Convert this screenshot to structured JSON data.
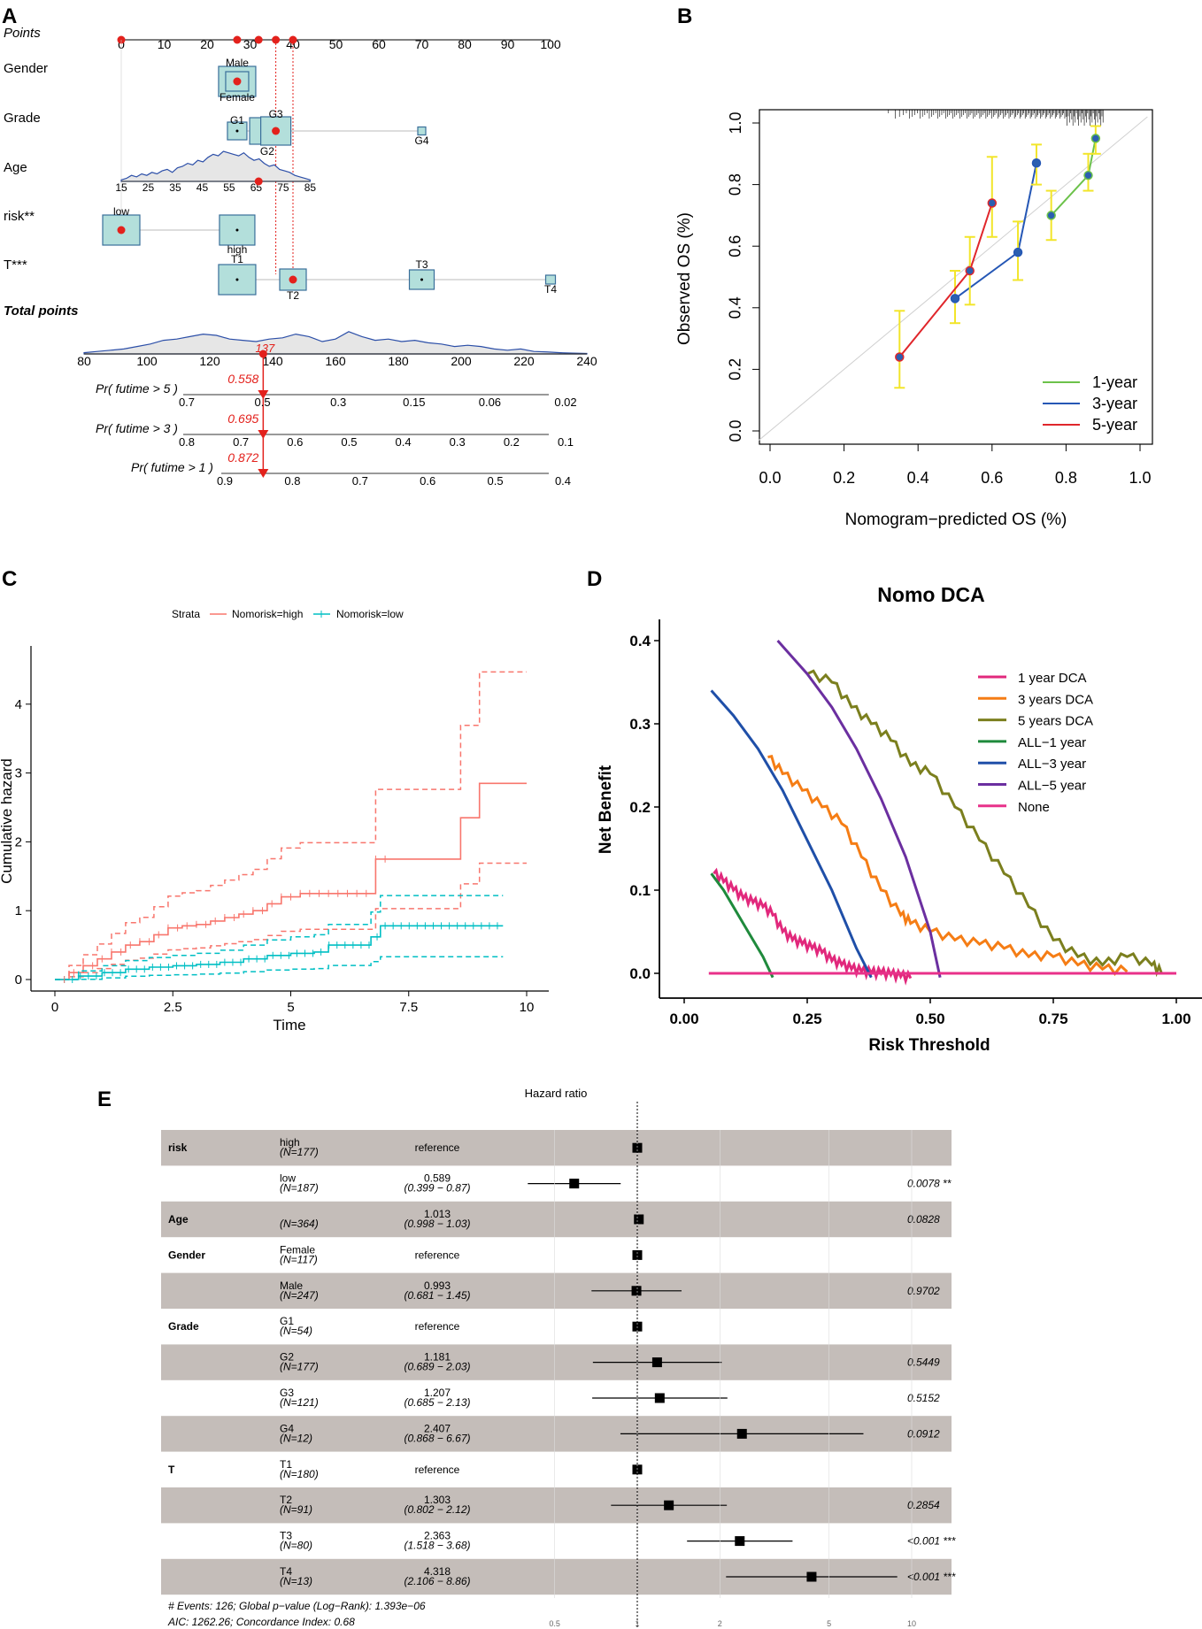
{
  "chart_data": [
    {
      "panel": "A",
      "type": "nomogram",
      "points_label": "Points",
      "points_ticks": [
        0,
        10,
        20,
        30,
        40,
        50,
        60,
        70,
        80,
        90,
        100
      ],
      "points_markers": [
        0,
        27,
        32,
        36,
        40
      ],
      "variables": [
        {
          "name": "Gender",
          "levels": [
            {
              "label": "Male",
              "points": 27
            },
            {
              "label": "Female",
              "points": 27
            }
          ],
          "selected_points": 27
        },
        {
          "name": "Grade",
          "levels": [
            {
              "label": "G1",
              "points": 27
            },
            {
              "label": "G3",
              "points": 36
            },
            {
              "label": "G2",
              "points": 33
            },
            {
              "label": "G4",
              "points": 70
            }
          ],
          "selected_points": 36
        },
        {
          "name": "Age",
          "ticks": [
            "15",
            "25",
            "35",
            "45",
            "55",
            "65",
            "75",
            "85"
          ],
          "selected_points": 32
        },
        {
          "name": "risk**",
          "levels": [
            {
              "label": "low",
              "points": 0
            },
            {
              "label": "high",
              "points": 27
            }
          ],
          "selected_points": 0
        },
        {
          "name": "T***",
          "levels": [
            {
              "label": "T1",
              "points": 27
            },
            {
              "label": "T2",
              "points": 40
            },
            {
              "label": "T3",
              "points": 70
            },
            {
              "label": "T4",
              "points": 100
            }
          ],
          "selected_points": 40
        }
      ],
      "total_points_label": "Total points",
      "total_ticks": [
        80,
        100,
        120,
        140,
        160,
        180,
        200,
        220,
        240
      ],
      "total_value": "137",
      "probability_axes": [
        {
          "label": "Pr( futime > 5 )",
          "ticks": [
            "0.7",
            "0.5",
            "0.3",
            "0.15",
            "0.06",
            "0.02"
          ],
          "value": "0.558"
        },
        {
          "label": "Pr( futime > 3 )",
          "ticks": [
            "0.8",
            "0.7",
            "0.6",
            "0.5",
            "0.4",
            "0.3",
            "0.2",
            "0.1"
          ],
          "value": "0.695"
        },
        {
          "label": "Pr( futime > 1 )",
          "ticks": [
            "0.9",
            "0.8",
            "0.7",
            "0.6",
            "0.5",
            "0.4"
          ],
          "value": "0.872"
        }
      ]
    },
    {
      "panel": "B",
      "type": "line",
      "xlabel": "Nomogram−predicted OS (%)",
      "ylabel": "Observed OS (%)",
      "xlim": [
        0,
        1
      ],
      "ylim": [
        0,
        1
      ],
      "x_ticks": [
        "0.0",
        "0.2",
        "0.4",
        "0.6",
        "0.8",
        "1.0"
      ],
      "y_ticks": [
        "0.0",
        "0.2",
        "0.4",
        "0.6",
        "0.8",
        "1.0"
      ],
      "series": [
        {
          "name": "1-year",
          "color": "#6cc24a",
          "x": [
            0.76,
            0.86,
            0.88
          ],
          "y": [
            0.7,
            0.83,
            0.95
          ]
        },
        {
          "name": "3-year",
          "color": "#2557b5",
          "x": [
            0.5,
            0.67,
            0.72
          ],
          "y": [
            0.43,
            0.58,
            0.87
          ]
        },
        {
          "name": "5-year",
          "color": "#e0262b",
          "x": [
            0.35,
            0.54,
            0.6
          ],
          "y": [
            0.24,
            0.52,
            0.74
          ]
        }
      ]
    },
    {
      "panel": "C",
      "type": "line",
      "xlabel": "Time",
      "ylabel": "Cumulative hazard",
      "xlim": [
        0,
        10
      ],
      "ylim": [
        0,
        4.5
      ],
      "x_ticks": [
        "0",
        "2.5",
        "5",
        "7.5",
        "10"
      ],
      "y_ticks": [
        "0",
        "1",
        "2",
        "3",
        "4"
      ],
      "legend_title": "Strata",
      "series": [
        {
          "name": "Nomorisk=high",
          "color": "#f8766d",
          "x": [
            0,
            0.3,
            0.6,
            0.9,
            1.2,
            1.5,
            1.8,
            2.1,
            2.4,
            2.7,
            3.0,
            3.3,
            3.6,
            3.9,
            4.2,
            4.5,
            4.8,
            5.2,
            5.6,
            6.0,
            6.5,
            6.8,
            7.5,
            8.6,
            9.0,
            10.0
          ],
          "y": [
            0,
            0.1,
            0.2,
            0.3,
            0.4,
            0.5,
            0.55,
            0.65,
            0.75,
            0.78,
            0.8,
            0.85,
            0.9,
            0.95,
            1.0,
            1.1,
            1.2,
            1.25,
            1.25,
            1.25,
            1.25,
            1.75,
            1.75,
            2.35,
            2.85,
            2.85
          ]
        },
        {
          "name": "Nomorisk=low",
          "color": "#00bfc4",
          "x": [
            0,
            0.5,
            1.0,
            1.5,
            2.0,
            2.5,
            3.0,
            3.5,
            4.0,
            4.5,
            5.0,
            5.5,
            5.8,
            6.4,
            6.7,
            6.9,
            7.5,
            8.5,
            9.5
          ],
          "y": [
            0,
            0.05,
            0.1,
            0.15,
            0.18,
            0.2,
            0.22,
            0.25,
            0.3,
            0.35,
            0.38,
            0.4,
            0.5,
            0.5,
            0.62,
            0.78,
            0.78,
            0.78,
            0.78
          ]
        }
      ]
    },
    {
      "panel": "D",
      "type": "line",
      "title": "Nomo DCA",
      "xlabel": "Risk Threshold",
      "ylabel": "Net Benefit",
      "xlim": [
        0,
        1
      ],
      "ylim": [
        -0.02,
        0.41
      ],
      "x_ticks": [
        "0.00",
        "0.25",
        "0.50",
        "0.75",
        "1.00"
      ],
      "y_ticks": [
        "0.0",
        "0.1",
        "0.2",
        "0.3",
        "0.4"
      ],
      "series": [
        {
          "name": "1 year DCA",
          "color": "#e1287c",
          "x": [
            0.06,
            0.08,
            0.1,
            0.12,
            0.14,
            0.16,
            0.18,
            0.2,
            0.22,
            0.24,
            0.26,
            0.28,
            0.3,
            0.32,
            0.34,
            0.36,
            0.38,
            0.4,
            0.42,
            0.44,
            0.46
          ],
          "y": [
            0.12,
            0.11,
            0.1,
            0.09,
            0.085,
            0.08,
            0.07,
            0.05,
            0.04,
            0.035,
            0.03,
            0.025,
            0.015,
            0.01,
            0.005,
            0.002,
            0.0,
            0.0,
            -0.002,
            -0.004,
            -0.006
          ]
        },
        {
          "name": "3 years DCA",
          "color": "#f57d15",
          "x": [
            0.17,
            0.2,
            0.24,
            0.28,
            0.32,
            0.36,
            0.4,
            0.44,
            0.46,
            0.5,
            0.55,
            0.6,
            0.65,
            0.7,
            0.75,
            0.8,
            0.85,
            0.9
          ],
          "y": [
            0.26,
            0.24,
            0.22,
            0.2,
            0.18,
            0.14,
            0.1,
            0.07,
            0.06,
            0.05,
            0.04,
            0.035,
            0.03,
            0.02,
            0.02,
            0.01,
            0.005,
            0.002
          ]
        },
        {
          "name": "5 years DCA",
          "color": "#7b7f1e",
          "x": [
            0.25,
            0.3,
            0.34,
            0.38,
            0.42,
            0.46,
            0.5,
            0.55,
            0.6,
            0.65,
            0.7,
            0.75,
            0.8,
            0.85,
            0.9,
            0.95,
            0.97
          ],
          "y": [
            0.36,
            0.35,
            0.32,
            0.3,
            0.28,
            0.25,
            0.24,
            0.2,
            0.16,
            0.12,
            0.08,
            0.04,
            0.02,
            0.01,
            0.02,
            0.01,
            0.0
          ]
        },
        {
          "name": "ALL−1 year",
          "color": "#1f8a3c",
          "x": [
            0.055,
            0.08,
            0.1,
            0.12,
            0.14,
            0.16,
            0.18
          ],
          "y": [
            0.12,
            0.1,
            0.08,
            0.06,
            0.04,
            0.02,
            -0.005
          ]
        },
        {
          "name": "ALL−3 year",
          "color": "#1f4fa8",
          "x": [
            0.055,
            0.1,
            0.15,
            0.2,
            0.25,
            0.3,
            0.35,
            0.38
          ],
          "y": [
            0.34,
            0.31,
            0.27,
            0.22,
            0.16,
            0.1,
            0.03,
            -0.005
          ]
        },
        {
          "name": "ALL−5 year",
          "color": "#6b2fa0",
          "x": [
            0.19,
            0.25,
            0.3,
            0.35,
            0.4,
            0.45,
            0.5,
            0.52
          ],
          "y": [
            0.4,
            0.36,
            0.32,
            0.27,
            0.21,
            0.14,
            0.05,
            -0.005
          ]
        },
        {
          "name": "None",
          "color": "#e8318a",
          "x": [
            0.05,
            1.0
          ],
          "y": [
            0,
            0
          ]
        }
      ]
    },
    {
      "panel": "E",
      "type": "table",
      "title": "Hazard ratio",
      "x_ticks": [
        0.5,
        1,
        2,
        5,
        10
      ],
      "rows": [
        {
          "var": "risk",
          "level": "high",
          "n": "(N=177)",
          "hr": "reference",
          "ci": "",
          "p": "",
          "est": 1.0,
          "lo": 1.0,
          "hi": 1.0
        },
        {
          "var": "",
          "level": "low",
          "n": "(N=187)",
          "hr": "0.589",
          "ci": "(0.399 − 0.87)",
          "p": "0.0078 **",
          "est": 0.589,
          "lo": 0.399,
          "hi": 0.87
        },
        {
          "var": "Age",
          "level": "",
          "n": "(N=364)",
          "hr": "1.013",
          "ci": "(0.998 − 1.03)",
          "p": "0.0828",
          "est": 1.013,
          "lo": 0.998,
          "hi": 1.03
        },
        {
          "var": "Gender",
          "level": "Female",
          "n": "(N=117)",
          "hr": "reference",
          "ci": "",
          "p": "",
          "est": 1.0,
          "lo": 1.0,
          "hi": 1.0
        },
        {
          "var": "",
          "level": "Male",
          "n": "(N=247)",
          "hr": "0.993",
          "ci": "(0.681 − 1.45)",
          "p": "0.9702",
          "est": 0.993,
          "lo": 0.681,
          "hi": 1.45
        },
        {
          "var": "Grade",
          "level": "G1",
          "n": "(N=54)",
          "hr": "reference",
          "ci": "",
          "p": "",
          "est": 1.0,
          "lo": 1.0,
          "hi": 1.0
        },
        {
          "var": "",
          "level": "G2",
          "n": "(N=177)",
          "hr": "1.181",
          "ci": "(0.689 − 2.03)",
          "p": "0.5449",
          "est": 1.181,
          "lo": 0.689,
          "hi": 2.03
        },
        {
          "var": "",
          "level": "G3",
          "n": "(N=121)",
          "hr": "1.207",
          "ci": "(0.685 − 2.13)",
          "p": "0.5152",
          "est": 1.207,
          "lo": 0.685,
          "hi": 2.13
        },
        {
          "var": "",
          "level": "G4",
          "n": "(N=12)",
          "hr": "2.407",
          "ci": "(0.868 − 6.67)",
          "p": "0.0912",
          "est": 2.407,
          "lo": 0.868,
          "hi": 6.67
        },
        {
          "var": "T",
          "level": "T1",
          "n": "(N=180)",
          "hr": "reference",
          "ci": "",
          "p": "",
          "est": 1.0,
          "lo": 1.0,
          "hi": 1.0
        },
        {
          "var": "",
          "level": "T2",
          "n": "(N=91)",
          "hr": "1.303",
          "ci": "(0.802 − 2.12)",
          "p": "0.2854",
          "est": 1.303,
          "lo": 0.802,
          "hi": 2.12
        },
        {
          "var": "",
          "level": "T3",
          "n": "(N=80)",
          "hr": "2.363",
          "ci": "(1.518 − 3.68)",
          "p": "<0.001 ***",
          "est": 2.363,
          "lo": 1.518,
          "hi": 3.68
        },
        {
          "var": "",
          "level": "T4",
          "n": "(N=13)",
          "hr": "4.318",
          "ci": "(2.106 − 8.86)",
          "p": "<0.001 ***",
          "est": 4.318,
          "lo": 2.106,
          "hi": 8.86
        }
      ],
      "footer": [
        "# Events: 126; Global p−value (Log−Rank): 1.393e−06",
        "AIC: 1262.26; Concordance Index: 0.68"
      ]
    }
  ]
}
